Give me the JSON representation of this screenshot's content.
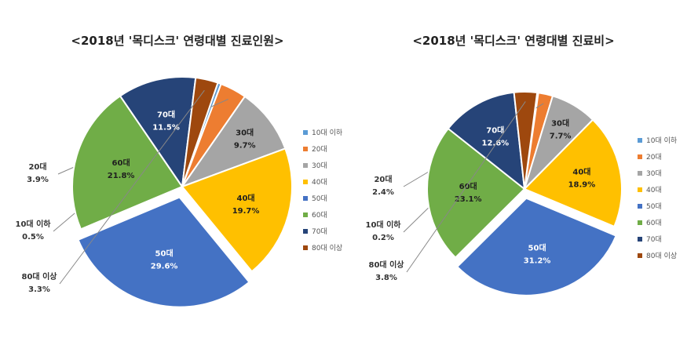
{
  "chart_data": [
    {
      "type": "pie",
      "title": "<2018년 '목디스크' 연령대별 진료인원>",
      "categories": [
        "10대 이하",
        "20대",
        "30대",
        "40대",
        "50대",
        "60대",
        "70대",
        "80대 이상"
      ],
      "values": [
        0.5,
        3.9,
        9.7,
        19.7,
        29.6,
        21.8,
        11.5,
        3.3
      ],
      "value_labels": [
        "0.5%",
        "3.9%",
        "9.7%",
        "19.7%",
        "29.6%",
        "21.8%",
        "11.5%",
        "3.3%"
      ],
      "colors": [
        "#5b9bd5",
        "#ed7d31",
        "#a5a5a5",
        "#ffc000",
        "#4472c4",
        "#70ad47",
        "#264478",
        "#9e480e"
      ],
      "exploded": "50대",
      "legend_position": "right"
    },
    {
      "type": "pie",
      "title": "<2018년 '목디스크' 연령대별 진료비>",
      "categories": [
        "10대 이하",
        "20대",
        "30대",
        "40대",
        "50대",
        "60대",
        "70대",
        "80대 이상"
      ],
      "values": [
        0.2,
        2.4,
        7.7,
        18.9,
        31.2,
        23.1,
        12.6,
        3.8
      ],
      "value_labels": [
        "0.2%",
        "2.4%",
        "7.7%",
        "18.9%",
        "31.2%",
        "23.1%",
        "12.6%",
        "3.8%"
      ],
      "colors": [
        "#5b9bd5",
        "#ed7d31",
        "#a5a5a5",
        "#ffc000",
        "#4472c4",
        "#70ad47",
        "#264478",
        "#9e480e"
      ],
      "exploded": "50대",
      "legend_position": "right"
    }
  ]
}
